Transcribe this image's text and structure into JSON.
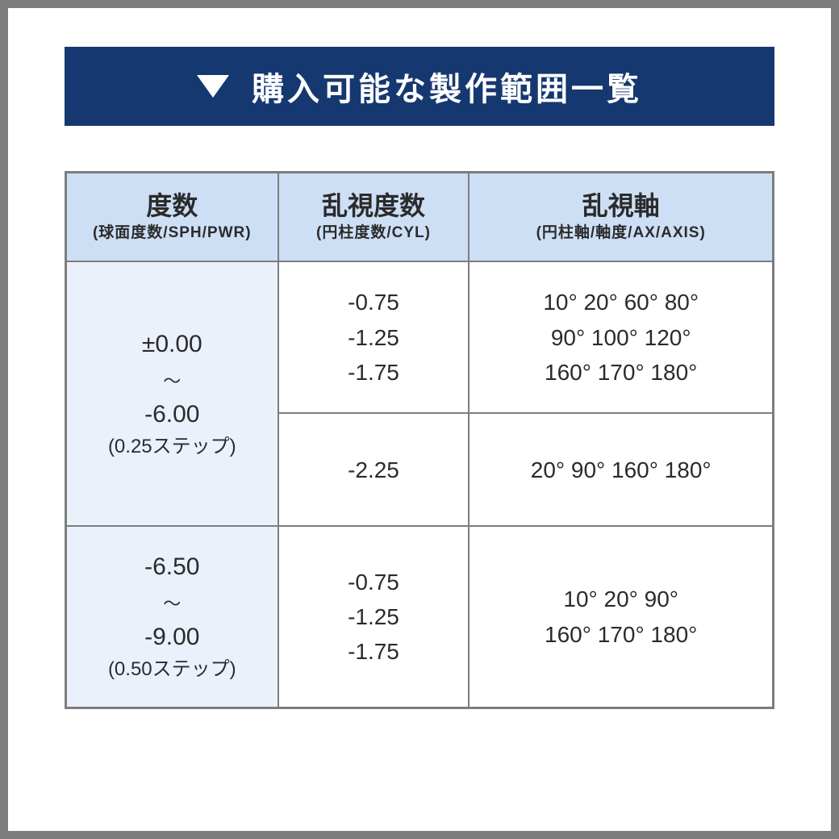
{
  "colors": {
    "frame_border": "#7d7d7d",
    "banner_bg": "#163870",
    "banner_text": "#ffffff",
    "th_bg": "#cddff5",
    "sph_bg": "#eaf1fb",
    "cell_bg": "#ffffff",
    "text": "#2b2b2b"
  },
  "banner": {
    "title": "購入可能な製作範囲一覧"
  },
  "table": {
    "headers": [
      {
        "line1": "度数",
        "line2": "(球面度数/SPH/PWR)"
      },
      {
        "line1": "乱視度数",
        "line2": "(円柱度数/CYL)"
      },
      {
        "line1": "乱視軸",
        "line2": "(円柱軸/軸度/AX/AXIS)"
      }
    ],
    "rows": [
      {
        "sph": {
          "range_from": "±0.00",
          "tilde": "〜",
          "range_to": "-6.00",
          "step": "(0.25ステップ)"
        },
        "sub": [
          {
            "cyl": "-0.75\n-1.25\n-1.75",
            "axis": "10° 20° 60° 80°\n90° 100° 120°\n160° 170° 180°"
          },
          {
            "cyl": "-2.25",
            "axis": "20° 90° 160° 180°"
          }
        ]
      },
      {
        "sph": {
          "range_from": "-6.50",
          "tilde": "〜",
          "range_to": "-9.00",
          "step": "(0.50ステップ)"
        },
        "sub": [
          {
            "cyl": "-0.75\n-1.25\n-1.75",
            "axis": "10° 20° 90°\n160° 170° 180°"
          }
        ]
      }
    ]
  }
}
